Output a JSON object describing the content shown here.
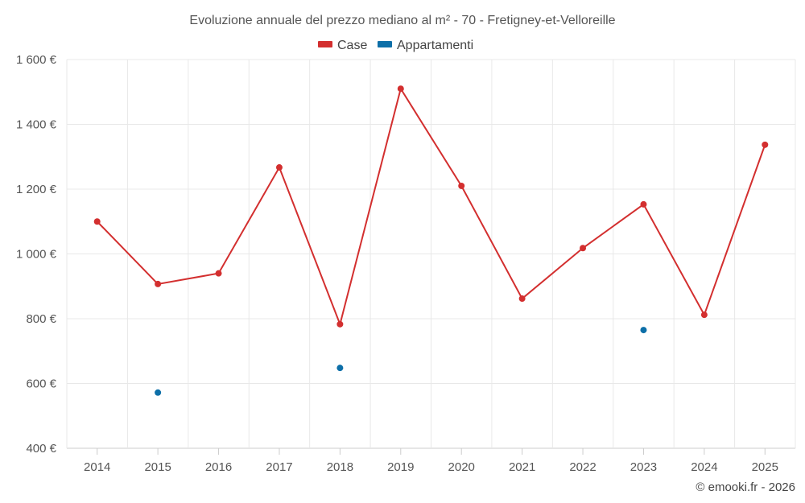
{
  "chart_data": {
    "type": "line",
    "title": "Evoluzione annuale del prezzo mediano al m² - 70 - Fretigney-et-Velloreille",
    "categories": [
      "2014",
      "2015",
      "2016",
      "2017",
      "2018",
      "2019",
      "2020",
      "2021",
      "2022",
      "2023",
      "2024",
      "2025"
    ],
    "series": [
      {
        "name": "Case",
        "color": "#d32f2f",
        "values": [
          1100,
          907,
          940,
          1267,
          783,
          1510,
          1210,
          862,
          1018,
          1153,
          812,
          1337
        ]
      },
      {
        "name": "Appartamenti",
        "color": "#0d6fa8",
        "values": [
          null,
          572,
          null,
          null,
          648,
          null,
          null,
          null,
          null,
          765,
          null,
          null
        ]
      }
    ],
    "ylim": [
      400,
      1600
    ],
    "yticks": [
      400,
      600,
      800,
      1000,
      1200,
      1400,
      1600
    ],
    "ytick_labels": [
      "400 €",
      "600 €",
      "800 €",
      "1 000 €",
      "1 200 €",
      "1 400 €",
      "1 600 €"
    ],
    "grid": true,
    "legend_position": "top-center",
    "xlabel": "",
    "ylabel": ""
  },
  "credit": "© emooki.fr - 2026"
}
